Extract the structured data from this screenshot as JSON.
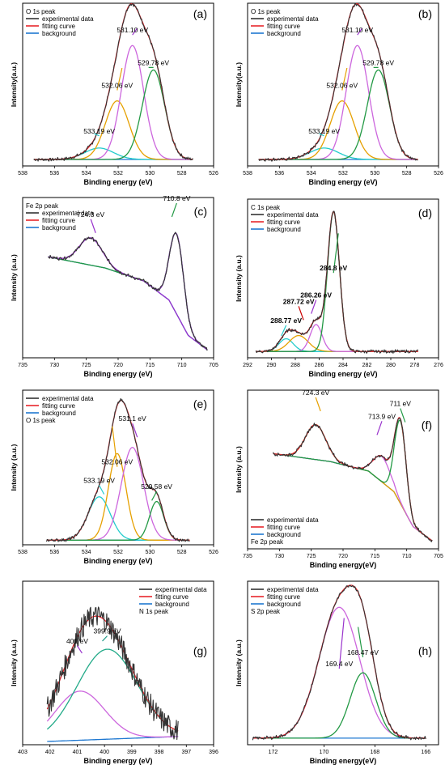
{
  "chart_data": [
    {
      "type": "line",
      "panel_label": "(a)",
      "legend_title": "O 1s peak",
      "legend": [
        "experimental data",
        "fitting curve",
        "background"
      ],
      "xlabel": "Binding energy (eV)",
      "ylabel": "Intensity(a.u.)",
      "xlim": [
        538,
        526
      ],
      "ylim": [
        0,
        100
      ],
      "xticks": [
        "538",
        "536",
        "534",
        "532",
        "530",
        "528",
        "526"
      ],
      "reversed_x": true,
      "legend_position": "top-left",
      "bg": [
        [
          537.3,
          4
        ],
        [
          527.3,
          4
        ]
      ],
      "peaks": [
        {
          "center": 533.19,
          "height": 7,
          "width": 0.9,
          "color": "#22cccc"
        },
        {
          "center": 532.06,
          "height": 36,
          "width": 0.75,
          "color": "#e6a000"
        },
        {
          "center": 531.1,
          "height": 70,
          "width": 0.7,
          "color": "#cc66dd"
        },
        {
          "center": 529.78,
          "height": 55,
          "width": 0.7,
          "color": "#229944"
        }
      ],
      "fit_color": "#e8262c",
      "annotations": [
        {
          "text": "531.10 eV",
          "x": 531.1,
          "y": 82,
          "color": "#9933cc"
        },
        {
          "text": "529.78 eV",
          "x": 529.78,
          "y": 62,
          "color": "#229944"
        },
        {
          "text": "532.06 eV",
          "x": 532.06,
          "y": 48,
          "color": "#e6a000"
        },
        {
          "text": "533.19 eV",
          "x": 533.19,
          "y": 20,
          "color": "#22cccc"
        }
      ]
    },
    {
      "type": "line",
      "panel_label": "(b)",
      "legend_title": "O 1s peak",
      "legend": [
        "experimental data",
        "fitting curve",
        "background"
      ],
      "xlabel": "Binding energy (eV)",
      "ylabel": "Intensity(a.u.)",
      "xlim": [
        538,
        526
      ],
      "ylim": [
        0,
        100
      ],
      "xticks": [
        "538",
        "536",
        "534",
        "532",
        "530",
        "528",
        "526"
      ],
      "reversed_x": true,
      "legend_position": "top-left",
      "bg": [
        [
          537.3,
          4
        ],
        [
          527.3,
          4
        ]
      ],
      "peaks": [
        {
          "center": 533.19,
          "height": 7,
          "width": 0.9,
          "color": "#22cccc"
        },
        {
          "center": 532.06,
          "height": 36,
          "width": 0.75,
          "color": "#e6a000"
        },
        {
          "center": 531.1,
          "height": 70,
          "width": 0.7,
          "color": "#cc66dd"
        },
        {
          "center": 529.78,
          "height": 55,
          "width": 0.7,
          "color": "#229944"
        }
      ],
      "fit_color": "#e8262c",
      "annotations": [
        {
          "text": "531.10 eV",
          "x": 531.1,
          "y": 82,
          "color": "#9933cc"
        },
        {
          "text": "529.78 eV",
          "x": 529.78,
          "y": 62,
          "color": "#229944"
        },
        {
          "text": "532.06 eV",
          "x": 532.06,
          "y": 48,
          "color": "#e6a000"
        },
        {
          "text": "533.19 eV",
          "x": 533.19,
          "y": 20,
          "color": "#22cccc"
        }
      ]
    },
    {
      "type": "line",
      "panel_label": "(c)",
      "legend_title": "Fe 2p peak",
      "legend": [
        "experimental data",
        "fitting curve",
        "background"
      ],
      "xlabel": "Binding energy (eV)",
      "ylabel": "Intensity (a.u.)",
      "xlim": [
        735,
        705
      ],
      "ylim": [
        0,
        100
      ],
      "xticks": [
        "735",
        "730",
        "725",
        "720",
        "715",
        "710",
        "705"
      ],
      "reversed_x": true,
      "legend_position": "top-left",
      "bg": [
        [
          731,
          63
        ],
        [
          722,
          56
        ],
        [
          716,
          48
        ],
        [
          712,
          36
        ],
        [
          709,
          14
        ],
        [
          706,
          5
        ]
      ],
      "peaks": [
        {
          "center": 724.3,
          "height": 17,
          "width": 1.8,
          "color": "#9933cc"
        },
        {
          "center": 710.8,
          "height": 50,
          "width": 1.1,
          "color": "#229944"
        }
      ],
      "fit_color": "#9933cc",
      "annotations": [
        {
          "text": "724.3 eV",
          "x": 724.3,
          "y": 88,
          "color": "#9933cc"
        },
        {
          "text": "710.8 eV",
          "x": 710.8,
          "y": 98,
          "color": "#229944"
        }
      ]
    },
    {
      "type": "line",
      "panel_label": "(d)",
      "legend_title": "C 1s peak",
      "legend": [
        "experimental data",
        "fitting curve",
        "background"
      ],
      "xlabel": "Binding energy (eV)",
      "ylabel": "Intensity (a.u.)",
      "xlim": [
        292,
        276
      ],
      "ylim": [
        0,
        100
      ],
      "xticks": [
        "292",
        "290",
        "288",
        "286",
        "284",
        "282",
        "280",
        "278",
        "276"
      ],
      "reversed_x": true,
      "legend_position": "top-left",
      "bg": [
        [
          291.3,
          4
        ],
        [
          277.7,
          4
        ]
      ],
      "peaks": [
        {
          "center": 288.77,
          "height": 8,
          "width": 0.6,
          "color": "#22cccc"
        },
        {
          "center": 287.72,
          "height": 10,
          "width": 0.8,
          "color": "#e6a000"
        },
        {
          "center": 286.26,
          "height": 17,
          "width": 0.5,
          "color": "#cc66dd"
        },
        {
          "center": 284.8,
          "height": 88,
          "width": 0.5,
          "color": "#229944"
        }
      ],
      "fit_color": "#e8262c",
      "annotations": [
        {
          "text": "284.8 eV",
          "x": 284.8,
          "y": 55,
          "color": "#229944",
          "bold": true
        },
        {
          "text": "286.26 eV",
          "x": 286.26,
          "y": 38,
          "color": "#9933cc",
          "bold": true
        },
        {
          "text": "287.72 eV",
          "x": 287.72,
          "y": 34,
          "color": "#cc0000",
          "bold": true
        },
        {
          "text": "288.77 eV",
          "x": 288.77,
          "y": 22,
          "color": "#22cccc",
          "bold": true
        }
      ]
    },
    {
      "type": "line",
      "panel_label": "(e)",
      "legend_title": "O 1s peak",
      "legend": [
        "experimental data",
        "fitting curve",
        "background"
      ],
      "xlabel": "Binding energy (eV)",
      "ylabel": "Intensity (a.u.)",
      "xlim": [
        538,
        526
      ],
      "ylim": [
        0,
        100
      ],
      "xticks": [
        "538",
        "536",
        "534",
        "532",
        "530",
        "528",
        "526"
      ],
      "reversed_x": true,
      "legend_position": "top-left",
      "bg": [
        [
          536.5,
          3
        ],
        [
          527.5,
          3
        ]
      ],
      "peaks": [
        {
          "center": 533.19,
          "height": 28,
          "width": 0.7,
          "color": "#22cccc"
        },
        {
          "center": 532.06,
          "height": 56,
          "width": 0.55,
          "color": "#e6a000"
        },
        {
          "center": 531.1,
          "height": 60,
          "width": 0.7,
          "color": "#cc66dd"
        },
        {
          "center": 529.58,
          "height": 25,
          "width": 0.45,
          "color": "#229944"
        }
      ],
      "fit_color": "#e8262c",
      "annotations": [
        {
          "text": "531.1 eV",
          "x": 531.1,
          "y": 80,
          "color": "#9933cc"
        },
        {
          "text": "532.06 eV",
          "x": 532.06,
          "y": 52,
          "color": "#e6a000"
        },
        {
          "text": "533.19 eV",
          "x": 533.19,
          "y": 40,
          "color": "#22cccc"
        },
        {
          "text": "529.58 eV",
          "x": 529.58,
          "y": 36,
          "color": "#229944"
        }
      ]
    },
    {
      "type": "line",
      "panel_label": "(f)",
      "legend_title": "Fe 2p peak",
      "legend": [
        "experimental data",
        "fitting curve",
        "background"
      ],
      "xlabel": "Binding energy(eV)",
      "ylabel": "Intensity (a.u.)",
      "xlim": [
        735,
        705
      ],
      "ylim": [
        0,
        100
      ],
      "xticks": [
        "735",
        "730",
        "725",
        "720",
        "715",
        "710",
        "705"
      ],
      "reversed_x": true,
      "legend_position": "bottom-left",
      "bg": [
        [
          731,
          60
        ],
        [
          722,
          55
        ],
        [
          716,
          49
        ],
        [
          712,
          36
        ],
        [
          709,
          14
        ],
        [
          706,
          5
        ]
      ],
      "peaks": [
        {
          "center": 724.3,
          "height": 22,
          "width": 1.6,
          "color": "#e6a000"
        },
        {
          "center": 713.9,
          "height": 16,
          "width": 1.3,
          "color": "#cc66dd"
        },
        {
          "center": 711,
          "height": 52,
          "width": 0.9,
          "color": "#229944"
        }
      ],
      "fit_color": "#e8262c",
      "annotations": [
        {
          "text": "724.3 eV",
          "x": 724.3,
          "y": 97,
          "color": "#e6a000"
        },
        {
          "text": "713.9 eV",
          "x": 713.9,
          "y": 82,
          "color": "#9933cc"
        },
        {
          "text": "711 eV",
          "x": 711,
          "y": 90,
          "color": "#229944"
        }
      ]
    },
    {
      "type": "line",
      "panel_label": "(g)",
      "legend_title": "N 1s peak",
      "legend": [
        "experimental data",
        "fitting curve",
        "background"
      ],
      "xlabel": "Binding energy (eV)",
      "ylabel": "Intensity (a.u.)",
      "xlim": [
        403,
        396
      ],
      "ylim": [
        0,
        100
      ],
      "xticks": [
        "403",
        "402",
        "401",
        "400",
        "399",
        "398",
        "397",
        "396"
      ],
      "reversed_x": true,
      "legend_position": "top-right",
      "bg": [
        [
          402.1,
          2
        ],
        [
          397.3,
          5
        ]
      ],
      "peaks": [
        {
          "center": 400.9,
          "height": 30,
          "width": 0.9,
          "color": "#cc66dd"
        },
        {
          "center": 399.9,
          "height": 55,
          "width": 1.1,
          "color": "#22aa88"
        }
      ],
      "fit_color": "#e8262c",
      "noisy": true,
      "annotations": [
        {
          "text": "401 eV",
          "x": 401,
          "y": 62,
          "color": "#9933cc"
        },
        {
          "text": "399.9 eV",
          "x": 399.9,
          "y": 68,
          "color": "#229988"
        }
      ]
    },
    {
      "type": "line",
      "panel_label": "(h)",
      "legend_title": "S 2p peak",
      "legend": [
        "experimental data",
        "fitting curve",
        "background"
      ],
      "xlabel": "Binding energy(eV)",
      "ylabel": "Intensity (a.u.)",
      "xlim": [
        173,
        165.5
      ],
      "ylim": [
        0,
        100
      ],
      "xticks": [
        "172",
        "170",
        "168",
        "166"
      ],
      "reversed_x": true,
      "legend_position": "top-left",
      "bg": [
        [
          172.8,
          4
        ],
        [
          166,
          4
        ]
      ],
      "peaks": [
        {
          "center": 169.4,
          "height": 80,
          "width": 0.8,
          "color": "#cc66dd"
        },
        {
          "center": 168.47,
          "height": 40,
          "width": 0.5,
          "color": "#229944"
        }
      ],
      "fit_color": "#e8262c",
      "annotations": [
        {
          "text": "169.4 eV",
          "x": 169.4,
          "y": 48,
          "color": "#9933cc"
        },
        {
          "text": "168.47 eV",
          "x": 168.47,
          "y": 55,
          "color": "#229944"
        }
      ]
    }
  ]
}
